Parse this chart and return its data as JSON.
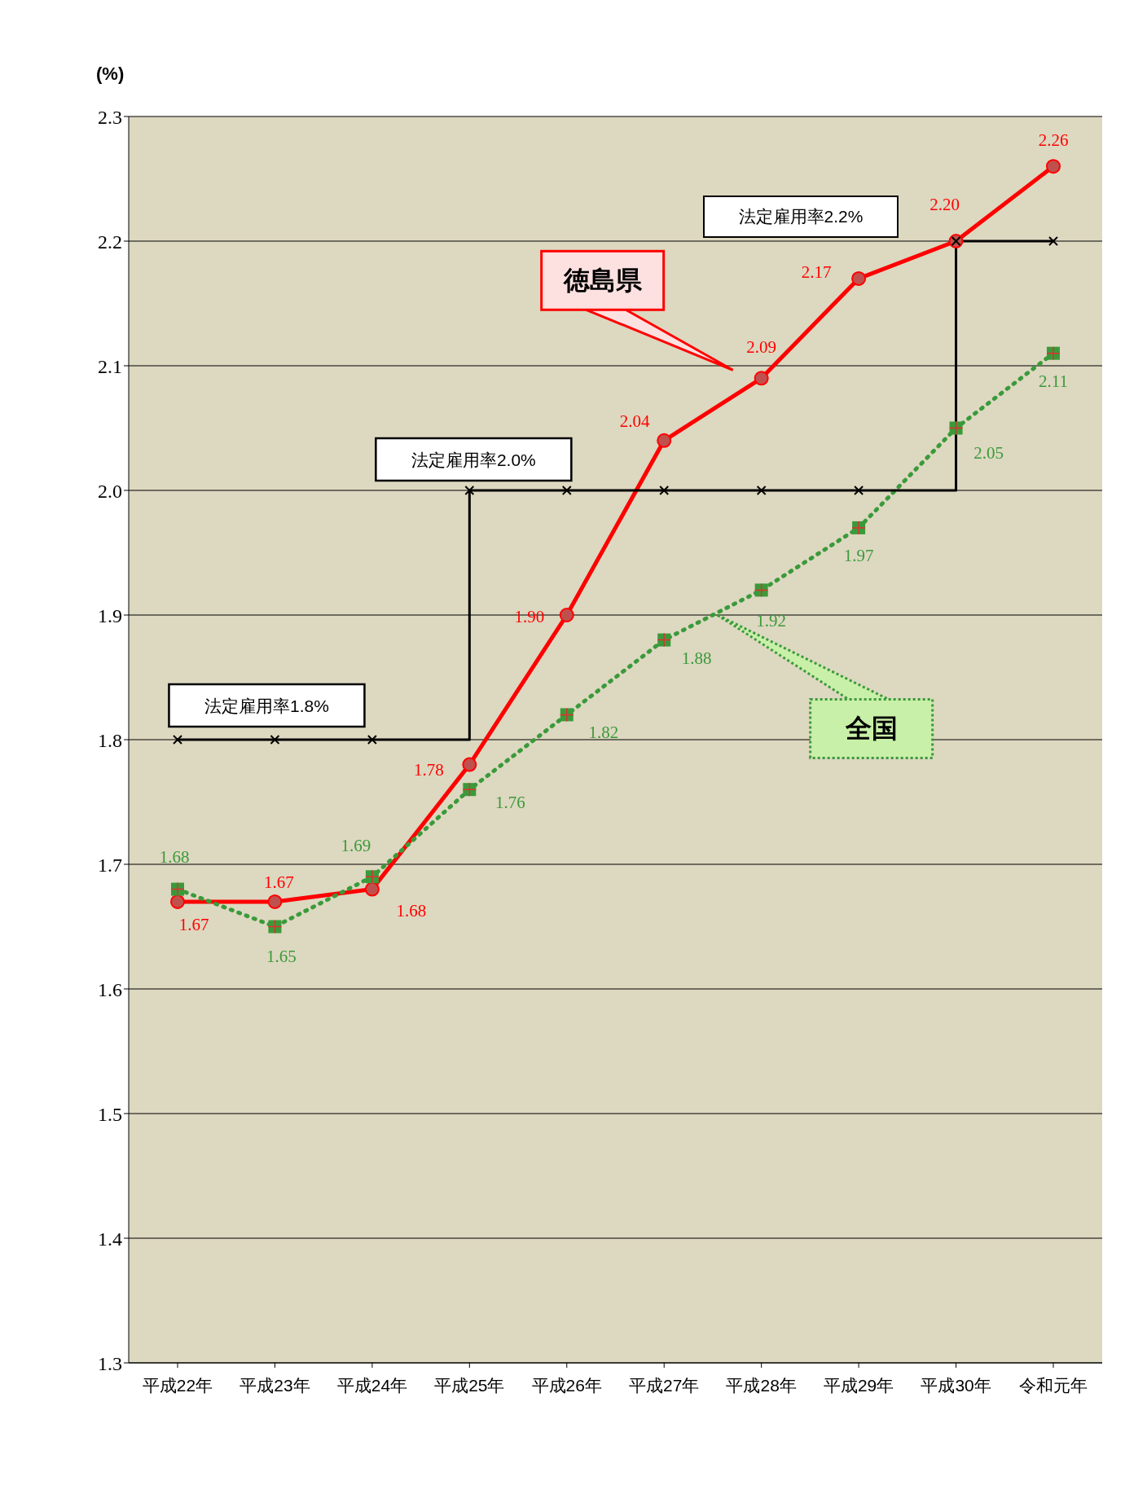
{
  "chart_data": {
    "type": "line",
    "ylabel": "(%)",
    "categories": [
      "平成22年",
      "平成23年",
      "平成24年",
      "平成25年",
      "平成26年",
      "平成27年",
      "平成28年",
      "平成29年",
      "平成30年",
      "令和元年"
    ],
    "series": [
      {
        "name": "徳島県",
        "color": "#ff0000",
        "marker": "circle",
        "line_style": "solid",
        "values": [
          1.67,
          1.67,
          1.68,
          1.78,
          1.9,
          2.04,
          2.09,
          2.17,
          2.2,
          2.26
        ],
        "value_labels": [
          "1.67",
          "1.67",
          "1.68",
          "1.78",
          "1.90",
          "2.04",
          "2.09",
          "2.17",
          "2.20",
          "2.26"
        ]
      },
      {
        "name": "全国",
        "color": "#3a9a3a",
        "marker": "square",
        "line_style": "dotted",
        "values": [
          1.68,
          1.65,
          1.69,
          1.76,
          1.82,
          1.88,
          1.92,
          1.97,
          2.05,
          2.11
        ],
        "value_labels": [
          "1.68",
          "1.65",
          "1.69",
          "1.76",
          "1.82",
          "1.88",
          "1.92",
          "1.97",
          "2.05",
          "2.11"
        ]
      },
      {
        "type": "step",
        "color": "#000000",
        "marker": "cross",
        "line_style": "solid",
        "values": [
          1.8,
          1.8,
          1.8,
          2.0,
          2.0,
          2.0,
          2.0,
          2.0,
          2.2,
          2.2
        ]
      }
    ],
    "annotations": [
      {
        "text": "法定雇用率1.8%",
        "x": "平成23年",
        "y": 1.8
      },
      {
        "text": "法定雇用率2.0%",
        "x": "平成25年",
        "y": 2.0
      },
      "法定雇用率2.2%"
    ],
    "ylim": [
      1.3,
      2.3
    ],
    "yticks": [
      1.3,
      1.4,
      1.5,
      1.6,
      1.7,
      1.8,
      1.9,
      {
        "value": 2,
        "label": "2.0"
      },
      2.1,
      2.2,
      2.3
    ],
    "grid": "y",
    "legend": false
  }
}
